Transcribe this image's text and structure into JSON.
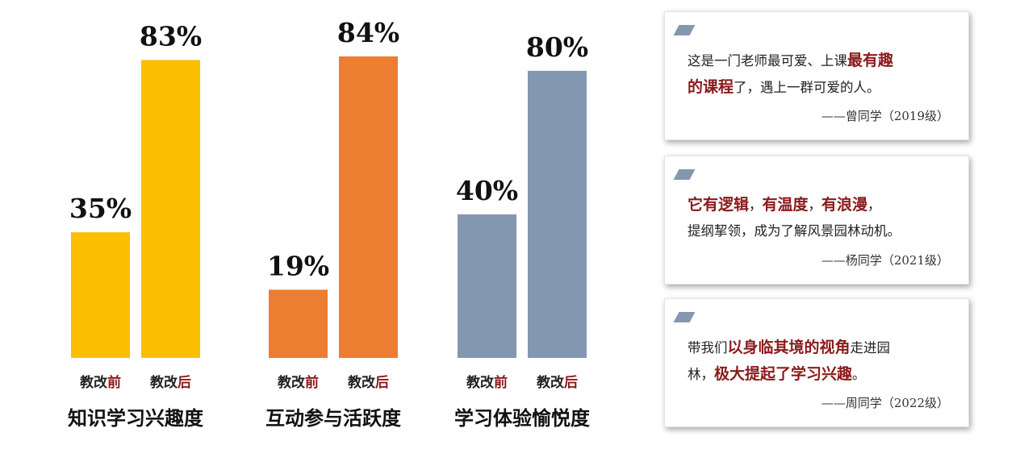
{
  "chart_data": [
    {
      "type": "bar",
      "title": "知识学习兴趣度",
      "categories": [
        "教改前",
        "教改后"
      ],
      "values": [
        35,
        83
      ],
      "data_labels": [
        "35%",
        "83%"
      ],
      "color": "#fbbe00",
      "ylim": [
        0,
        100
      ]
    },
    {
      "type": "bar",
      "title": "互动参与活跃度",
      "categories": [
        "教改前",
        "教改后"
      ],
      "values": [
        19,
        84
      ],
      "data_labels": [
        "19%",
        "84%"
      ],
      "color": "#ed7d31",
      "ylim": [
        0,
        100
      ]
    },
    {
      "type": "bar",
      "title": "学习体验愉悦度",
      "categories": [
        "教改前",
        "教改后"
      ],
      "values": [
        40,
        80
      ],
      "data_labels": [
        "40%",
        "80%"
      ],
      "color": "#8497b0",
      "ylim": [
        0,
        100
      ]
    }
  ],
  "category_style": {
    "prefix": "教改",
    "prefix_color": "#222222",
    "suffix_color": "#8b1a1a"
  },
  "quotes": [
    {
      "segments": [
        {
          "text": "这是一门老师最可爱、上课",
          "hl": false
        },
        {
          "text": "最有趣",
          "hl": true
        },
        {
          "text": "\n",
          "hl": false
        },
        {
          "text": "的课程",
          "hl": true
        },
        {
          "text": "了，遇上一群可爱的人。",
          "hl": false
        }
      ],
      "author": "——曾同学（2019级）"
    },
    {
      "segments": [
        {
          "text": "它有逻辑",
          "hl": true
        },
        {
          "text": "，",
          "hl": false
        },
        {
          "text": "有温度",
          "hl": true
        },
        {
          "text": "，",
          "hl": false
        },
        {
          "text": "有浪漫",
          "hl": true
        },
        {
          "text": "，\n提纲挈领，成为了解风景园林动机。",
          "hl": false
        }
      ],
      "author": "——杨同学（2021级）"
    },
    {
      "segments": [
        {
          "text": "带我们",
          "hl": false
        },
        {
          "text": "以身临其境的视角",
          "hl": true
        },
        {
          "text": "走进园\n林，",
          "hl": false
        },
        {
          "text": "极大提起了学习兴趣",
          "hl": true
        },
        {
          "text": "。",
          "hl": false
        }
      ],
      "author": "——周同学（2022级）"
    }
  ],
  "colors": {
    "accent": "#8b1a1a",
    "card_mark": "#8497b0"
  }
}
